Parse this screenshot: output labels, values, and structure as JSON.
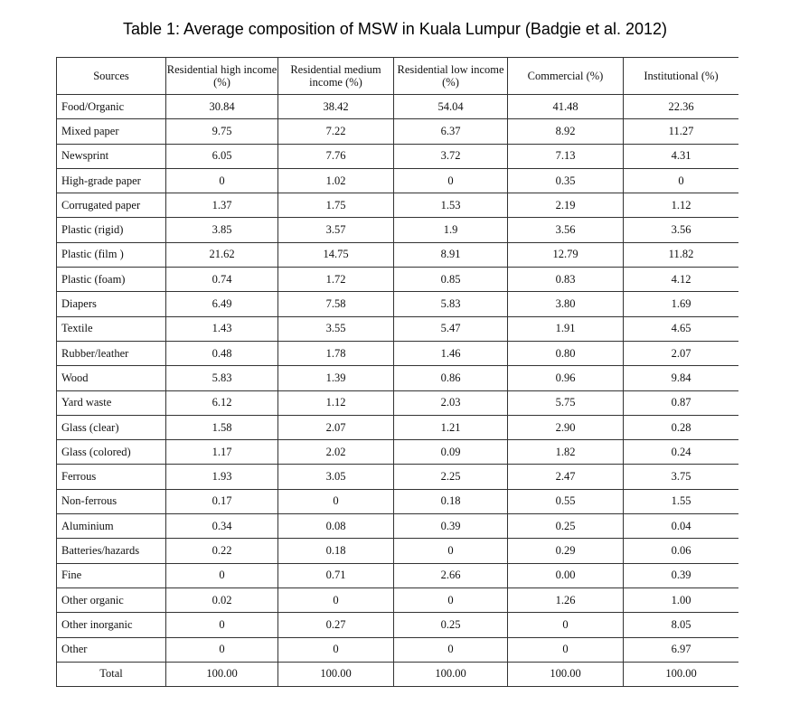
{
  "title": "Table 1: Average composition of MSW in Kuala Lumpur (Badgie et al. 2012)",
  "columns": [
    "Sources",
    "Residential high income (%)",
    "Residential medium income (%)",
    "Residential low income (%)",
    "Commercial (%)",
    "Institutional (%)"
  ],
  "rows": [
    [
      "Food/Organic",
      "30.84",
      "38.42",
      "54.04",
      "41.48",
      "22.36"
    ],
    [
      "Mixed paper",
      "9.75",
      "7.22",
      "6.37",
      "8.92",
      "11.27"
    ],
    [
      "Newsprint",
      "6.05",
      "7.76",
      "3.72",
      "7.13",
      "4.31"
    ],
    [
      "High-grade paper",
      "0",
      "1.02",
      "0",
      "0.35",
      "0"
    ],
    [
      "Corrugated paper",
      "1.37",
      "1.75",
      "1.53",
      "2.19",
      "1.12"
    ],
    [
      "Plastic (rigid)",
      "3.85",
      "3.57",
      "1.9",
      "3.56",
      "3.56"
    ],
    [
      "Plastic (film )",
      "21.62",
      "14.75",
      "8.91",
      "12.79",
      "11.82"
    ],
    [
      "Plastic (foam)",
      "0.74",
      "1.72",
      "0.85",
      "0.83",
      "4.12"
    ],
    [
      "Diapers",
      "6.49",
      "7.58",
      "5.83",
      "3.80",
      "1.69"
    ],
    [
      "Textile",
      "1.43",
      "3.55",
      "5.47",
      "1.91",
      "4.65"
    ],
    [
      "Rubber/leather",
      "0.48",
      "1.78",
      "1.46",
      "0.80",
      "2.07"
    ],
    [
      "Wood",
      "5.83",
      "1.39",
      "0.86",
      "0.96",
      "9.84"
    ],
    [
      "Yard waste",
      "6.12",
      "1.12",
      "2.03",
      "5.75",
      "0.87"
    ],
    [
      "Glass (clear)",
      "1.58",
      "2.07",
      "1.21",
      "2.90",
      "0.28"
    ],
    [
      "Glass (colored)",
      "1.17",
      "2.02",
      "0.09",
      "1.82",
      "0.24"
    ],
    [
      "Ferrous",
      "1.93",
      "3.05",
      "2.25",
      "2.47",
      "3.75"
    ],
    [
      "Non-ferrous",
      "0.17",
      "0",
      "0.18",
      "0.55",
      "1.55"
    ],
    [
      "Aluminium",
      "0.34",
      "0.08",
      "0.39",
      "0.25",
      "0.04"
    ],
    [
      "Batteries/hazards",
      "0.22",
      "0.18",
      "0",
      "0.29",
      "0.06"
    ],
    [
      "Fine",
      "0",
      "0.71",
      "2.66",
      "0.00",
      "0.39"
    ],
    [
      "Other organic",
      "0.02",
      "0",
      "0",
      "1.26",
      "1.00"
    ],
    [
      "Other inorganic",
      "0",
      "0.27",
      "0.25",
      "0",
      "8.05"
    ],
    [
      "Other",
      "0",
      "0",
      "0",
      "0",
      "6.97"
    ],
    [
      "Total",
      "100.00",
      "100.00",
      "100.00",
      "100.00",
      "100.00"
    ]
  ]
}
